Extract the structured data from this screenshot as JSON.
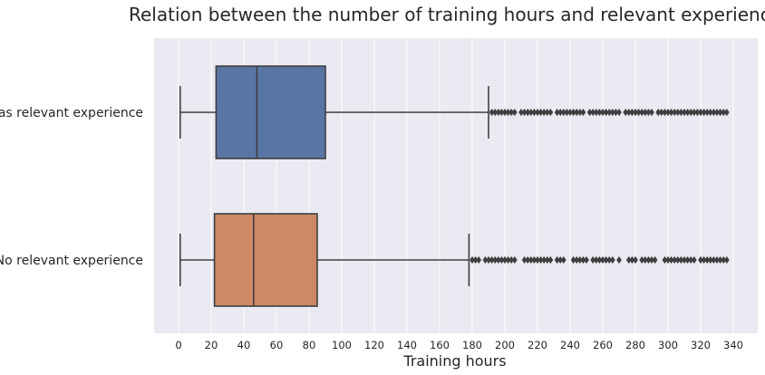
{
  "chart_data": {
    "type": "boxplot",
    "orientation": "horizontal",
    "title": "Relation between the number of training hours and relevant experience",
    "xlabel": "Training hours",
    "ylabel": "",
    "xlim": [
      -15,
      355
    ],
    "xticks": [
      0,
      20,
      40,
      60,
      80,
      100,
      120,
      140,
      160,
      180,
      200,
      220,
      240,
      260,
      280,
      300,
      320,
      340
    ],
    "grid": true,
    "categories": [
      "Has relevant experience",
      "No relevant experience"
    ],
    "series": [
      {
        "category": "Has relevant experience",
        "color": "#5975a4",
        "whisker_low": 1,
        "q1": 23,
        "median": 48,
        "q3": 90,
        "whisker_high": 190,
        "outliers": [
          192,
          194,
          196,
          198,
          200,
          202,
          204,
          206,
          210,
          212,
          214,
          216,
          218,
          220,
          222,
          224,
          226,
          228,
          232,
          234,
          236,
          238,
          240,
          242,
          244,
          246,
          248,
          252,
          254,
          256,
          258,
          260,
          262,
          264,
          266,
          268,
          270,
          274,
          276,
          278,
          280,
          282,
          284,
          286,
          288,
          290,
          294,
          296,
          298,
          300,
          302,
          304,
          306,
          308,
          310,
          312,
          314,
          316,
          318,
          320,
          322,
          324,
          326,
          328,
          330,
          332,
          334,
          336
        ]
      },
      {
        "category": "No relevant experience",
        "color": "#cc8963",
        "whisker_low": 1,
        "q1": 22,
        "median": 46,
        "q3": 85,
        "whisker_high": 178,
        "outliers": [
          180,
          182,
          184,
          188,
          190,
          192,
          194,
          196,
          198,
          200,
          202,
          204,
          206,
          212,
          214,
          216,
          218,
          220,
          222,
          224,
          226,
          228,
          232,
          234,
          236,
          242,
          244,
          246,
          248,
          250,
          254,
          256,
          258,
          260,
          262,
          264,
          266,
          270,
          276,
          278,
          280,
          284,
          286,
          288,
          290,
          292,
          298,
          300,
          302,
          304,
          306,
          308,
          310,
          312,
          314,
          316,
          320,
          322,
          324,
          326,
          328,
          330,
          332,
          334,
          336
        ]
      }
    ]
  },
  "colors": {
    "plot_background": "#eaeaf2",
    "grid": "#ffffff",
    "box_edge": "#3f3f3f"
  }
}
